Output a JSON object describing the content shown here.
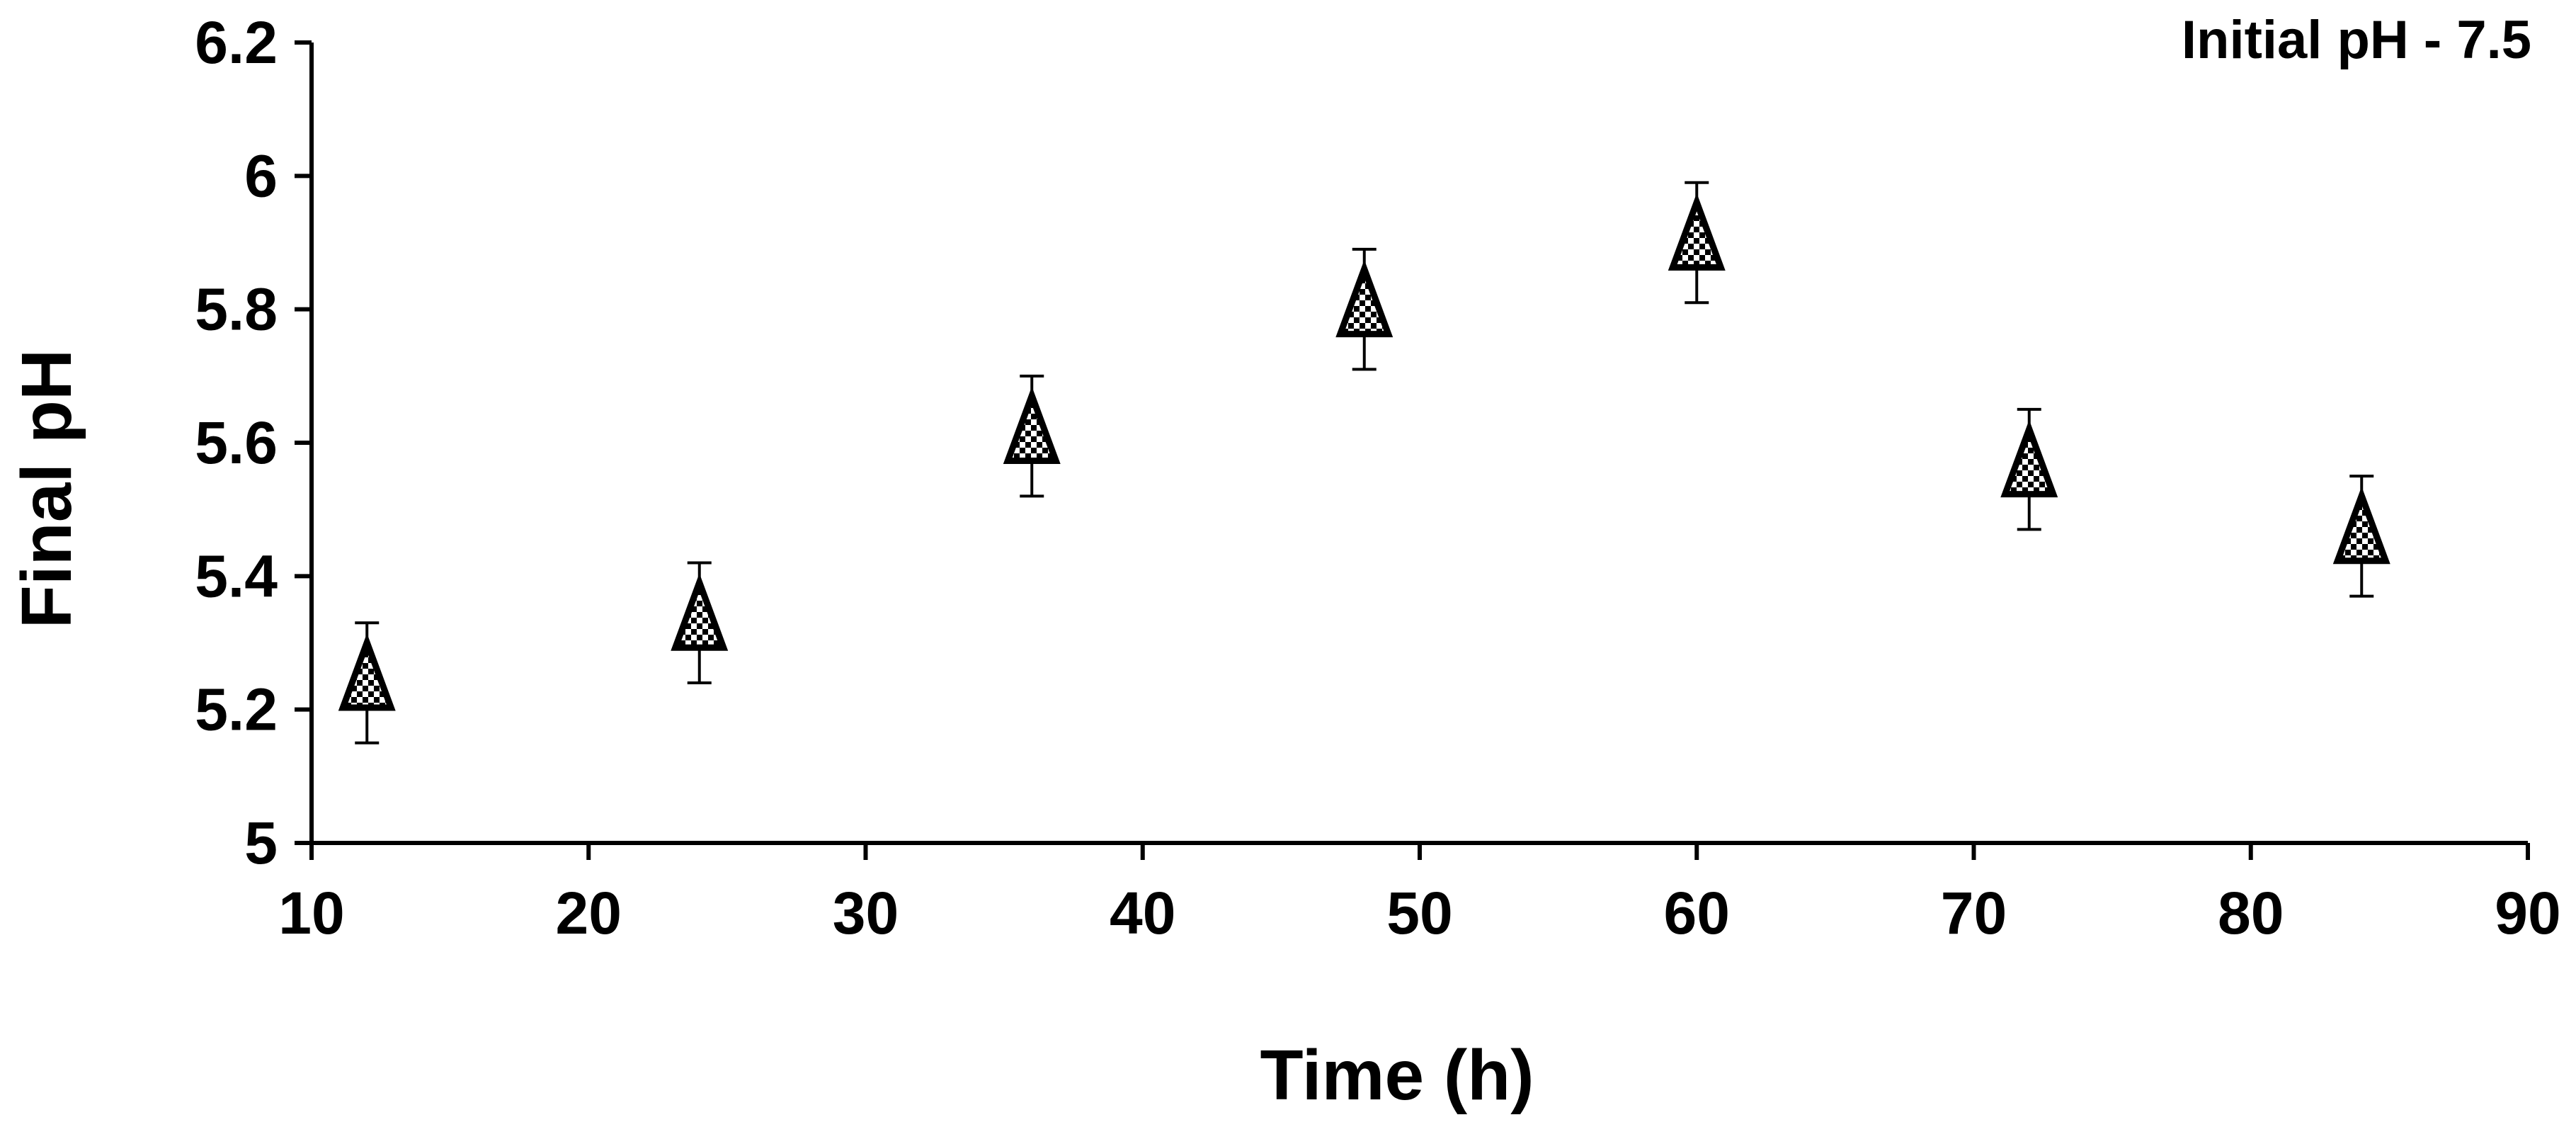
{
  "chart_data": {
    "type": "scatter",
    "title": "",
    "annotation": "Initial pH - 7.5",
    "xlabel": "Time (h)",
    "ylabel": "Final pH",
    "xlim": [
      10,
      90
    ],
    "ylim": [
      5,
      6.2
    ],
    "x_ticks": [
      "10",
      "20",
      "30",
      "40",
      "50",
      "60",
      "70",
      "80",
      "90"
    ],
    "y_ticks": [
      "5",
      "5.2",
      "5.4",
      "5.6",
      "5.8",
      "6",
      "6.2"
    ],
    "grid": false,
    "legend": "none",
    "marker": "triangle-checkered",
    "series": [
      {
        "x": [
          12,
          24,
          36,
          48,
          60,
          72,
          84
        ],
        "y": [
          5.24,
          5.33,
          5.61,
          5.8,
          5.9,
          5.56,
          5.46
        ],
        "error_plus": [
          0.09,
          0.09,
          0.09,
          0.09,
          0.09,
          0.09,
          0.09
        ],
        "error_minus": [
          0.09,
          0.09,
          0.09,
          0.09,
          0.09,
          0.09,
          0.09
        ]
      }
    ],
    "colors": {
      "axis": "#000000",
      "marker_stroke": "#000000",
      "marker_fill": "#000000",
      "marker_checker": "#ffffff"
    }
  }
}
